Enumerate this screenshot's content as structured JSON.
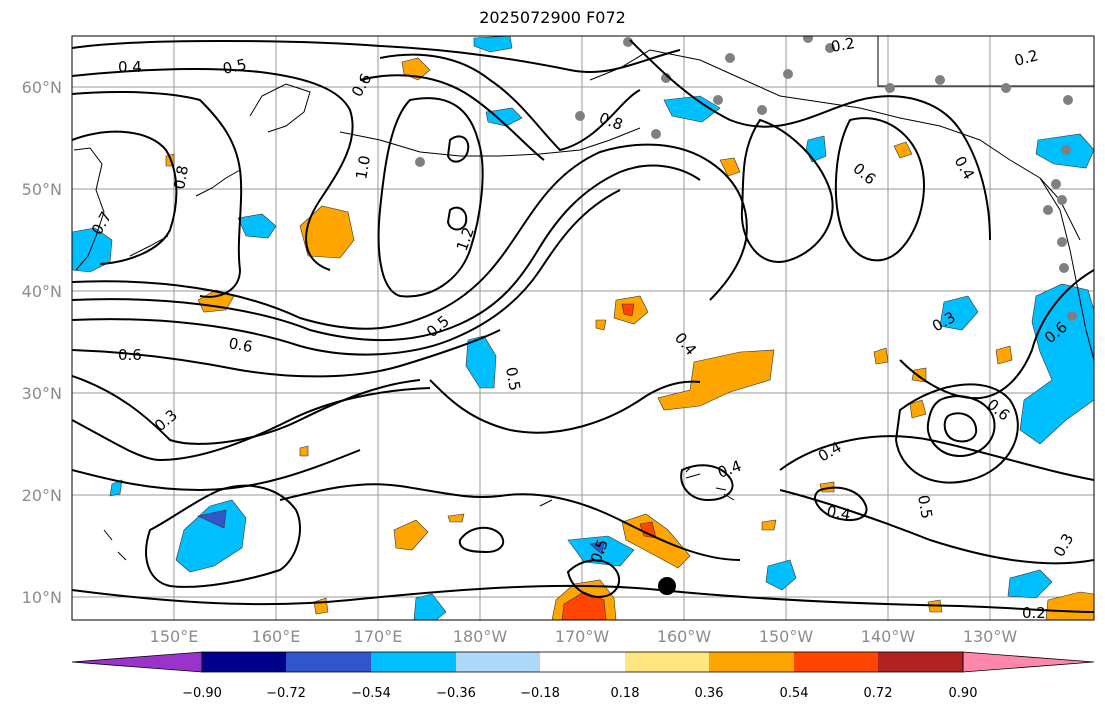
{
  "map": {
    "title": "2025072900 F072",
    "lon_ticks": [
      "150°E",
      "160°E",
      "170°E",
      "180°W",
      "170°W",
      "160°W",
      "150°W",
      "140°W",
      "130°W"
    ],
    "lat_ticks": [
      "60°N",
      "50°N",
      "40°N",
      "30°N",
      "20°N",
      "10°N"
    ],
    "extent": {
      "lon_min": 140,
      "lon_max": 240,
      "lat_min": 8,
      "lat_max": 65
    },
    "contour_labels": [
      "0.4",
      "0.5",
      "0.6",
      "0.7",
      "0.8",
      "1.0",
      "1.2",
      "0.2",
      "0.3",
      "0.5",
      "0.6",
      "0.4",
      "0.8",
      "0.6",
      "0.6",
      "0.3",
      "0.4",
      "0.6",
      "0.5",
      "0.4",
      "0.4",
      "0.5",
      "0.2",
      "0.2",
      "0.6",
      "0.4",
      "0.3",
      "0.5"
    ]
  },
  "colorbar": {
    "ticks": [
      "−0.90",
      "−0.72",
      "−0.54",
      "−0.36",
      "−0.18",
      "0.18",
      "0.36",
      "0.54",
      "0.72",
      "0.90"
    ],
    "colors": [
      "#9933cc",
      "#00008b",
      "#3355cc",
      "#00bfff",
      "#add8f8",
      "#ffffff",
      "#ffe680",
      "#ffa500",
      "#ff4500",
      "#b22222",
      "#ff88aa"
    ]
  }
}
